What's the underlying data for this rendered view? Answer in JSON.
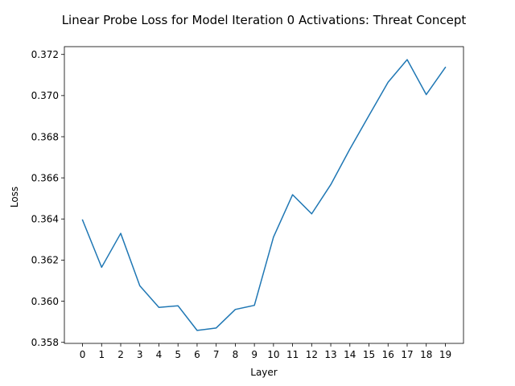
{
  "chart_data": {
    "type": "line",
    "title": "Linear Probe Loss for Model Iteration 0 Activations: Threat Concept",
    "xlabel": "Layer",
    "ylabel": "Loss",
    "x": [
      0,
      1,
      2,
      3,
      4,
      5,
      6,
      7,
      8,
      9,
      10,
      11,
      12,
      13,
      14,
      15,
      16,
      17,
      18,
      19
    ],
    "xticks": [
      "0",
      "1",
      "2",
      "3",
      "4",
      "5",
      "6",
      "7",
      "8",
      "9",
      "10",
      "11",
      "12",
      "13",
      "14",
      "15",
      "16",
      "17",
      "18",
      "19"
    ],
    "yticks": [
      "0.358",
      "0.360",
      "0.362",
      "0.364",
      "0.366",
      "0.368",
      "0.370",
      "0.372"
    ],
    "ytick_values": [
      0.358,
      0.36,
      0.362,
      0.364,
      0.366,
      0.368,
      0.37,
      0.372
    ],
    "xlim": [
      -0.95,
      19.95
    ],
    "ylim": [
      0.35795,
      0.37238
    ],
    "series": [
      {
        "values": [
          0.36395,
          0.36165,
          0.3633,
          0.36075,
          0.3597,
          0.35978,
          0.35858,
          0.3587,
          0.3596,
          0.3598,
          0.36312,
          0.36518,
          0.36425,
          0.36567,
          0.3674,
          0.36903,
          0.37065,
          0.37175,
          0.37005,
          0.37137
        ],
        "color": "#1f77b4"
      }
    ],
    "grid": false,
    "legend": "none"
  }
}
